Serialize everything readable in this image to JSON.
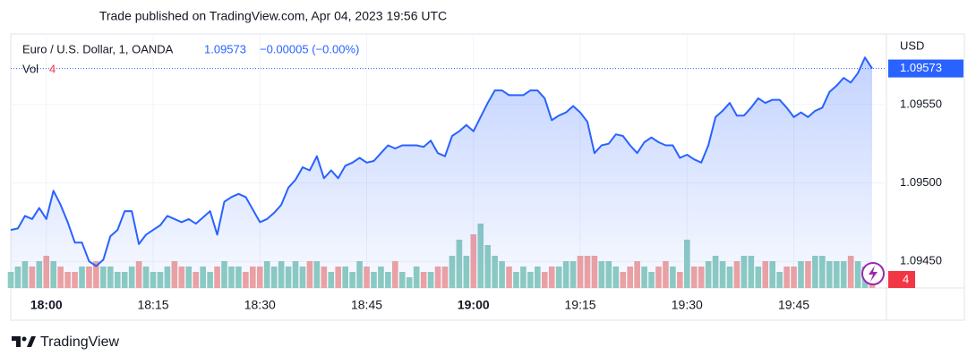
{
  "chart_data": {
    "type": "line",
    "title": "Trade published on TradingView.com, Apr 04, 2023 19:56 UTC",
    "y_label": "USD",
    "change": "−0.00005 (−0.00%)",
    "brand": "TradingView",
    "categories": [
      null,
      null,
      null,
      null,
      null,
      "18:00",
      null,
      null,
      null,
      null,
      null,
      null,
      null,
      null,
      null,
      null,
      null,
      null,
      null,
      null,
      "18:15",
      null,
      null,
      null,
      null,
      null,
      null,
      null,
      null,
      null,
      null,
      null,
      null,
      null,
      null,
      "18:30",
      null,
      null,
      null,
      null,
      null,
      null,
      null,
      null,
      null,
      null,
      null,
      null,
      null,
      null,
      "18:45",
      null,
      null,
      null,
      null,
      null,
      null,
      null,
      null,
      null,
      null,
      null,
      null,
      null,
      null,
      "19:00",
      null,
      null,
      null,
      null,
      null,
      null,
      null,
      null,
      null,
      null,
      null,
      null,
      null,
      null,
      "19:15",
      null,
      null,
      null,
      null,
      null,
      null,
      null,
      null,
      null,
      null,
      null,
      null,
      null,
      null,
      "19:30",
      null,
      null,
      null,
      null,
      null,
      null,
      null,
      null,
      null,
      null,
      null,
      null,
      null,
      null,
      "19:45",
      null,
      null,
      null,
      null,
      null,
      null,
      null,
      null,
      null,
      null,
      null
    ],
    "series": [
      {
        "name": "Euro / U.S. Dollar, 1, OANDA",
        "color": "#2962ff",
        "values": [
          1.0947,
          1.09471,
          1.09479,
          1.09477,
          1.09484,
          1.09477,
          1.09495,
          1.09486,
          1.09475,
          1.09462,
          1.09462,
          1.0945,
          1.09447,
          1.09451,
          1.09466,
          1.0947,
          1.09482,
          1.09482,
          1.09461,
          1.09467,
          1.0947,
          1.09473,
          1.09479,
          1.09477,
          1.09475,
          1.09477,
          1.09474,
          1.09478,
          1.09482,
          1.09467,
          1.09488,
          1.09491,
          1.09493,
          1.09491,
          1.09483,
          1.09475,
          1.09477,
          1.09481,
          1.09486,
          1.09497,
          1.09502,
          1.0951,
          1.09508,
          1.09517,
          1.09503,
          1.09508,
          1.09503,
          1.09511,
          1.09513,
          1.09516,
          1.09513,
          1.09514,
          1.09519,
          1.09524,
          1.09522,
          1.09524,
          1.09524,
          1.09524,
          1.09523,
          1.09527,
          1.09519,
          1.09517,
          1.0953,
          1.09533,
          1.09537,
          1.09533,
          1.09542,
          1.09551,
          1.09559,
          1.09559,
          1.09556,
          1.09556,
          1.09556,
          1.09559,
          1.09559,
          1.09554,
          1.0954,
          1.09543,
          1.09545,
          1.09549,
          1.09545,
          1.09539,
          1.09519,
          1.09524,
          1.09525,
          1.09531,
          1.0953,
          1.09524,
          1.09519,
          1.09526,
          1.09529,
          1.09526,
          1.09524,
          1.09524,
          1.09516,
          1.09518,
          1.09515,
          1.09513,
          1.09524,
          1.09542,
          1.09546,
          1.09551,
          1.09543,
          1.09543,
          1.09548,
          1.09554,
          1.09551,
          1.09553,
          1.09553,
          1.09548,
          1.09542,
          1.09545,
          1.09542,
          1.09546,
          1.09548,
          1.09558,
          1.09562,
          1.09567,
          1.09564,
          1.0957,
          1.0958,
          1.09573
        ]
      }
    ],
    "volume": {
      "name": "Vol",
      "up_color": "#8ecdc0",
      "down_color": "#f2a3a0",
      "values": [
        3,
        4,
        5,
        4,
        5,
        6,
        5,
        4,
        3,
        3,
        4,
        4,
        5,
        4,
        4,
        3,
        3,
        4,
        5,
        4,
        3,
        3,
        4,
        5,
        4,
        4,
        3,
        4,
        3,
        4,
        5,
        4,
        4,
        3,
        4,
        4,
        5,
        4,
        5,
        4,
        5,
        4,
        5,
        5,
        4,
        3,
        4,
        4,
        3,
        5,
        4,
        3,
        4,
        3,
        5,
        3,
        2,
        4,
        3,
        3,
        4,
        4,
        6,
        9,
        6,
        10,
        12,
        8,
        6,
        5,
        4,
        3,
        4,
        3,
        4,
        3,
        4,
        4,
        5,
        5,
        6,
        6,
        6,
        5,
        5,
        4,
        3,
        4,
        5,
        4,
        3,
        4,
        5,
        4,
        3,
        9,
        4,
        4,
        5,
        6,
        5,
        4,
        5,
        6,
        6,
        4,
        5,
        5,
        3,
        4,
        4,
        5,
        5,
        6,
        6,
        5,
        5,
        5,
        6,
        5,
        4,
        4
      ]
    },
    "ylim": [
      1.09433,
      1.09595
    ],
    "yticks": [
      {
        "value": 1.0945,
        "label": "1.09450"
      },
      {
        "value": 1.095,
        "label": "1.09500"
      },
      {
        "value": 1.0955,
        "label": "1.09550"
      }
    ],
    "grid": true
  }
}
